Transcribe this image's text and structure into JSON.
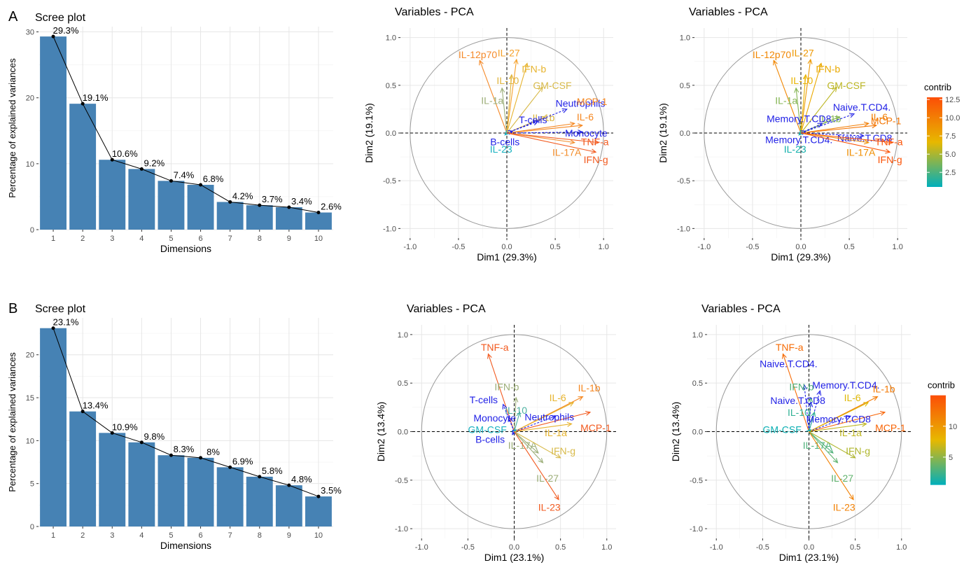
{
  "panels": {
    "A": {
      "label": "A"
    },
    "B": {
      "label": "B"
    }
  },
  "scree_style": {
    "bar_color": "#4682b4",
    "line_color": "#000000"
  },
  "contrib_scale_colors": [
    "#fc4e07",
    "#e7b800",
    "#00afbb"
  ],
  "chart_data": [
    {
      "type": "bar",
      "panel": "A",
      "title": "Scree plot",
      "xlabel": "Dimensions",
      "ylabel": "Percentage of explained variances",
      "categories": [
        "1",
        "2",
        "3",
        "4",
        "5",
        "6",
        "7",
        "8",
        "9",
        "10"
      ],
      "values": [
        29.3,
        19.1,
        10.6,
        9.2,
        7.4,
        6.8,
        4.2,
        3.7,
        3.4,
        2.6
      ],
      "data_labels": [
        "29.3%",
        "19.1%",
        "10.6%",
        "9.2%",
        "7.4%",
        "6.8%",
        "4.2%",
        "3.7%",
        "3.4%",
        "2.6%"
      ],
      "ylim": [
        0,
        30.8
      ],
      "yticks": [
        0,
        10,
        20,
        30
      ],
      "yticklabels": [
        "0",
        "10",
        "20",
        "30"
      ]
    },
    {
      "type": "scatter",
      "panel": "A",
      "title": "Variables - PCA",
      "xlabel": "Dim1 (29.3%)",
      "ylabel": "Dim2 (19.1%)",
      "xlim": [
        -1.1,
        1.1
      ],
      "ylim": [
        -1.1,
        1.1
      ],
      "ticks": [
        -1,
        -0.5,
        0,
        0.5,
        1
      ],
      "xticklabels": [
        "-1.0",
        "-0.5",
        "0.0",
        "0.5",
        "1.0"
      ],
      "yticklabels": [
        "-1.0",
        "-0.5",
        "0.0",
        "0.5",
        "1.0"
      ],
      "color_mode": "group",
      "arrows": [
        {
          "label": "IL-12p70",
          "x": -0.28,
          "y": 0.76,
          "lx": -0.3,
          "ly": 0.82,
          "color": "#f58a2a",
          "dashed": false
        },
        {
          "label": "IL-27",
          "x": 0.1,
          "y": 0.77,
          "lx": 0.02,
          "ly": 0.84,
          "color": "#f5a02a",
          "dashed": false
        },
        {
          "label": "IFN-b",
          "x": 0.21,
          "y": 0.73,
          "lx": 0.28,
          "ly": 0.67,
          "color": "#e7b42f",
          "dashed": false
        },
        {
          "label": "IL-10",
          "x": 0.05,
          "y": 0.61,
          "lx": 0.01,
          "ly": 0.55,
          "color": "#e0b43c",
          "dashed": false
        },
        {
          "label": "GM-CSF",
          "x": 0.37,
          "y": 0.48,
          "lx": 0.47,
          "ly": 0.5,
          "color": "#d8ba4a",
          "dashed": false
        },
        {
          "label": "IL-1a",
          "x": -0.05,
          "y": 0.47,
          "lx": -0.15,
          "ly": 0.34,
          "color": "#9cae78",
          "dashed": false
        },
        {
          "label": "IL-1b",
          "x": 0.4,
          "y": 0.17,
          "lx": 0.38,
          "ly": 0.16,
          "color": "#d9b53e",
          "dashed": false
        },
        {
          "label": "Neutrophils",
          "x": 0.62,
          "y": 0.25,
          "lx": 0.76,
          "ly": 0.31,
          "color": "#1f1fe6",
          "dashed": true
        },
        {
          "label": "T-cells",
          "x": 0.32,
          "y": 0.12,
          "lx": 0.27,
          "ly": 0.14,
          "color": "#1f1fe6",
          "dashed": true
        },
        {
          "label": "MCP-1",
          "x": 0.78,
          "y": 0.08,
          "lx": 0.88,
          "ly": 0.33,
          "color": "#f5861f",
          "dashed": false
        },
        {
          "label": "IL-6",
          "x": 0.7,
          "y": 0.1,
          "lx": 0.81,
          "ly": 0.17,
          "color": "#f5861f",
          "dashed": false
        },
        {
          "label": "Monocyte",
          "x": 0.78,
          "y": 0.01,
          "lx": 0.82,
          "ly": 0.0,
          "color": "#1f1fe6",
          "dashed": true
        },
        {
          "label": "IL-23",
          "x": -0.02,
          "y": -0.02,
          "lx": -0.06,
          "ly": -0.17,
          "color": "#19b2c1",
          "dashed": false
        },
        {
          "label": "B-cells",
          "x": 0.06,
          "y": 0.02,
          "lx": -0.02,
          "ly": -0.09,
          "color": "#1f1fe6",
          "dashed": true
        },
        {
          "label": "TNF-a",
          "x": 0.95,
          "y": -0.1,
          "lx": 0.91,
          "ly": -0.09,
          "color": "#f25a1f",
          "dashed": false
        },
        {
          "label": "IL-17A",
          "x": 0.7,
          "y": -0.1,
          "lx": 0.62,
          "ly": -0.2,
          "color": "#f28c2a",
          "dashed": false
        },
        {
          "label": "IFN-g",
          "x": 0.92,
          "y": -0.2,
          "lx": 0.92,
          "ly": -0.28,
          "color": "#f25a1f",
          "dashed": false
        }
      ]
    },
    {
      "type": "scatter",
      "panel": "A",
      "title": "Variables - PCA",
      "xlabel": "Dim1 (29.3%)",
      "ylabel": "Dim2 (19.1%)",
      "xlim": [
        -1.1,
        1.1
      ],
      "ylim": [
        -1.1,
        1.1
      ],
      "ticks": [
        -1,
        -0.5,
        0,
        0.5,
        1
      ],
      "xticklabels": [
        "-1.0",
        "-0.5",
        "0.0",
        "0.5",
        "1.0"
      ],
      "yticklabels": [
        "-1.0",
        "-0.5",
        "0.0",
        "0.5",
        "1.0"
      ],
      "color_mode": "contrib",
      "legend": {
        "title": "contrib",
        "min": 0.5,
        "max": 12.8,
        "ticks": [
          2.5,
          5.0,
          7.5,
          10.0,
          12.5
        ],
        "ticklabels": [
          "2.5",
          "5.0",
          "7.5",
          "10.0",
          "12.5"
        ],
        "position": "right"
      },
      "arrows": [
        {
          "label": "IL-12p70",
          "x": -0.28,
          "y": 0.76,
          "lx": -0.3,
          "ly": 0.82,
          "contrib": 9.5,
          "dashed": false
        },
        {
          "label": "IL-27",
          "x": 0.1,
          "y": 0.77,
          "lx": 0.02,
          "ly": 0.84,
          "contrib": 8.5,
          "dashed": false
        },
        {
          "label": "IFN-b",
          "x": 0.21,
          "y": 0.73,
          "lx": 0.28,
          "ly": 0.67,
          "contrib": 7.5,
          "dashed": false
        },
        {
          "label": "IL-10",
          "x": 0.05,
          "y": 0.61,
          "lx": 0.01,
          "ly": 0.55,
          "contrib": 7.0,
          "dashed": false
        },
        {
          "label": "GM-CSF",
          "x": 0.37,
          "y": 0.48,
          "lx": 0.47,
          "ly": 0.5,
          "contrib": 5.5,
          "dashed": false
        },
        {
          "label": "IL-1a",
          "x": -0.05,
          "y": 0.47,
          "lx": -0.15,
          "ly": 0.34,
          "contrib": 4.0,
          "dashed": false
        },
        {
          "label": "IL-1b",
          "x": 0.4,
          "y": 0.17,
          "lx": 0.3,
          "ly": 0.15,
          "contrib": 4.0,
          "dashed": false
        },
        {
          "label": "Naive.T.CD4.",
          "x": 0.55,
          "y": 0.2,
          "lx": 0.63,
          "ly": 0.27,
          "color": "#1f1fe6",
          "dashed": true
        },
        {
          "label": "Memory.T.CD8",
          "x": 0.22,
          "y": 0.1,
          "lx": -0.02,
          "ly": 0.15,
          "color": "#1f1fe6",
          "dashed": true
        },
        {
          "label": "MCP-1",
          "x": 0.78,
          "y": 0.08,
          "lx": 0.88,
          "ly": 0.13,
          "contrib": 10.5,
          "dashed": false
        },
        {
          "label": "IL-6",
          "x": 0.7,
          "y": 0.1,
          "lx": 0.81,
          "ly": 0.17,
          "contrib": 10.0,
          "dashed": false
        },
        {
          "label": "Memory.T.CD4.",
          "x": 0.05,
          "y": 0.02,
          "lx": -0.02,
          "ly": -0.07,
          "color": "#1f1fe6",
          "dashed": true
        },
        {
          "label": "Naive.T.CD8",
          "x": 0.65,
          "y": -0.03,
          "lx": 0.66,
          "ly": -0.05,
          "color": "#1f1fe6",
          "dashed": true
        },
        {
          "label": "IL-23",
          "x": -0.02,
          "y": -0.02,
          "lx": -0.06,
          "ly": -0.17,
          "contrib": 1.0,
          "dashed": false
        },
        {
          "label": "TNF-a",
          "x": 0.95,
          "y": -0.1,
          "lx": 0.91,
          "ly": -0.09,
          "contrib": 12.5,
          "dashed": false
        },
        {
          "label": "IL-17A",
          "x": 0.7,
          "y": -0.1,
          "lx": 0.62,
          "ly": -0.2,
          "contrib": 9.0,
          "dashed": false
        },
        {
          "label": "IFN-g",
          "x": 0.92,
          "y": -0.2,
          "lx": 0.92,
          "ly": -0.28,
          "contrib": 12.5,
          "dashed": false
        }
      ]
    },
    {
      "type": "bar",
      "panel": "B",
      "title": "Scree plot",
      "xlabel": "Dimensions",
      "ylabel": "Percentage of explained variances",
      "categories": [
        "1",
        "2",
        "3",
        "4",
        "5",
        "6",
        "7",
        "8",
        "9",
        "10"
      ],
      "values": [
        23.1,
        13.4,
        10.9,
        9.8,
        8.3,
        8.0,
        6.9,
        5.8,
        4.8,
        3.5
      ],
      "data_labels": [
        "23.1%",
        "13.4%",
        "10.9%",
        "9.8%",
        "8.3%",
        "8%",
        "6.9%",
        "5.8%",
        "4.8%",
        "3.5%"
      ],
      "ylim": [
        0,
        24.3
      ],
      "yticks": [
        0,
        5,
        10,
        15,
        20
      ],
      "yticklabels": [
        "0",
        "5",
        "10",
        "15",
        "20"
      ]
    },
    {
      "type": "scatter",
      "panel": "B",
      "title": "Variables - PCA",
      "xlabel": "Dim1 (23.1%)",
      "ylabel": "Dim2 (13.4%)",
      "xlim": [
        -1.1,
        1.1
      ],
      "ylim": [
        -1.1,
        1.1
      ],
      "ticks": [
        -1,
        -0.5,
        0,
        0.5,
        1
      ],
      "xticklabels": [
        "-1.0",
        "-0.5",
        "0.0",
        "0.5",
        "1.0"
      ],
      "yticklabels": [
        "-1.0",
        "-0.5",
        "0.0",
        "0.5",
        "1.0"
      ],
      "color_mode": "group",
      "arrows": [
        {
          "label": "TNF-a",
          "x": -0.28,
          "y": 0.8,
          "lx": -0.21,
          "ly": 0.87,
          "color": "#f25a1f",
          "dashed": false
        },
        {
          "label": "IL-1b",
          "x": 0.74,
          "y": 0.36,
          "lx": 0.81,
          "ly": 0.45,
          "color": "#f5861f",
          "dashed": false
        },
        {
          "label": "IL-6",
          "x": 0.64,
          "y": 0.3,
          "lx": 0.47,
          "ly": 0.35,
          "color": "#e7b42f",
          "dashed": false
        },
        {
          "label": "MCP-1",
          "x": 0.82,
          "y": 0.2,
          "lx": 0.88,
          "ly": 0.04,
          "color": "#f25a1f",
          "dashed": false
        },
        {
          "label": "IFN-b",
          "x": 0.02,
          "y": 0.35,
          "lx": -0.08,
          "ly": 0.46,
          "color": "#9cae78",
          "dashed": false
        },
        {
          "label": "IL-10",
          "x": 0.06,
          "y": 0.2,
          "lx": 0.02,
          "ly": 0.22,
          "color": "#4ab0a0",
          "dashed": false
        },
        {
          "label": "T-cells",
          "x": -0.12,
          "y": 0.28,
          "lx": -0.33,
          "ly": 0.33,
          "color": "#1f1fe6",
          "dashed": true
        },
        {
          "label": "Monocyte",
          "x": -0.06,
          "y": 0.15,
          "lx": -0.21,
          "ly": 0.14,
          "color": "#1f1fe6",
          "dashed": true
        },
        {
          "label": "Neutrophils",
          "x": 0.45,
          "y": 0.16,
          "lx": 0.38,
          "ly": 0.15,
          "color": "#1f1fe6",
          "dashed": true
        },
        {
          "label": "GM-CSF",
          "x": 0.02,
          "y": 0.02,
          "lx": -0.29,
          "ly": 0.02,
          "color": "#19b2c1",
          "dashed": false
        },
        {
          "label": "B-cells",
          "x": -0.02,
          "y": -0.03,
          "lx": -0.26,
          "ly": -0.08,
          "color": "#1f1fe6",
          "dashed": true
        },
        {
          "label": "IL-1a",
          "x": 0.62,
          "y": 0.08,
          "lx": 0.45,
          "ly": -0.01,
          "color": "#e7b42f",
          "dashed": false
        },
        {
          "label": "IL-17A",
          "x": 0.26,
          "y": -0.22,
          "lx": 0.09,
          "ly": -0.14,
          "color": "#9cae78",
          "dashed": false
        },
        {
          "label": "IFN-g",
          "x": 0.5,
          "y": -0.27,
          "lx": 0.53,
          "ly": -0.2,
          "color": "#d8ba4a",
          "dashed": false
        },
        {
          "label": "IL-27",
          "x": 0.31,
          "y": -0.32,
          "lx": 0.36,
          "ly": -0.48,
          "color": "#9cae78",
          "dashed": false
        },
        {
          "label": "IL-23",
          "x": 0.48,
          "y": -0.7,
          "lx": 0.38,
          "ly": -0.78,
          "color": "#f25a1f",
          "dashed": false
        }
      ]
    },
    {
      "type": "scatter",
      "panel": "B",
      "title": "Variables - PCA",
      "xlabel": "Dim1 (23.1%)",
      "ylabel": "Dim2 (13.4%)",
      "xlim": [
        -1.1,
        1.1
      ],
      "ylim": [
        -1.1,
        1.1
      ],
      "ticks": [
        -1,
        -0.5,
        0,
        0.5,
        1
      ],
      "xticklabels": [
        "-1.0",
        "-0.5",
        "0.0",
        "0.5",
        "1.0"
      ],
      "yticklabels": [
        "-1.0",
        "-0.5",
        "0.0",
        "0.5",
        "1.0"
      ],
      "color_mode": "contrib",
      "legend": {
        "title": "contrib",
        "min": 0.5,
        "max": 15.0,
        "ticks": [
          5,
          10
        ],
        "ticklabels": [
          "5",
          "10"
        ],
        "position": "right"
      },
      "arrows": [
        {
          "label": "TNF-a",
          "x": -0.28,
          "y": 0.8,
          "lx": -0.21,
          "ly": 0.87,
          "contrib": 13.0,
          "dashed": false
        },
        {
          "label": "Naive.T.CD4.",
          "x": -0.05,
          "y": 0.48,
          "lx": -0.22,
          "ly": 0.7,
          "color": "#1f1fe6",
          "dashed": true
        },
        {
          "label": "Memory.T.CD4.",
          "x": 0.12,
          "y": 0.42,
          "lx": 0.4,
          "ly": 0.48,
          "color": "#1f1fe6",
          "dashed": true
        },
        {
          "label": "IL-1b",
          "x": 0.74,
          "y": 0.36,
          "lx": 0.81,
          "ly": 0.44,
          "contrib": 12.0,
          "dashed": false
        },
        {
          "label": "IL-6",
          "x": 0.64,
          "y": 0.3,
          "lx": 0.47,
          "ly": 0.35,
          "contrib": 7.5,
          "dashed": false
        },
        {
          "label": "MCP-1",
          "x": 0.82,
          "y": 0.2,
          "lx": 0.88,
          "ly": 0.04,
          "contrib": 13.5,
          "dashed": false
        },
        {
          "label": "IFN-b",
          "x": 0.02,
          "y": 0.35,
          "lx": -0.08,
          "ly": 0.46,
          "contrib": 3.0,
          "dashed": false
        },
        {
          "label": "Naive.T.CD8",
          "x": 0.02,
          "y": 0.3,
          "lx": -0.12,
          "ly": 0.32,
          "color": "#1f1fe6",
          "dashed": true
        },
        {
          "label": "IL-10",
          "x": 0.06,
          "y": 0.2,
          "lx": -0.11,
          "ly": 0.2,
          "contrib": 2.0,
          "dashed": false
        },
        {
          "label": "Memory.T.CD8",
          "x": 0.45,
          "y": 0.16,
          "lx": 0.32,
          "ly": 0.13,
          "color": "#1f1fe6",
          "dashed": true
        },
        {
          "label": "GM-CSF",
          "x": 0.02,
          "y": 0.02,
          "lx": -0.29,
          "ly": 0.02,
          "contrib": 0.8,
          "dashed": false
        },
        {
          "label": "IL-1a",
          "x": 0.62,
          "y": 0.08,
          "lx": 0.45,
          "ly": -0.01,
          "contrib": 6.5,
          "dashed": false
        },
        {
          "label": "IL-17A",
          "x": 0.26,
          "y": -0.22,
          "lx": 0.09,
          "ly": -0.14,
          "contrib": 3.0,
          "dashed": false
        },
        {
          "label": "IFN-g",
          "x": 0.5,
          "y": -0.27,
          "lx": 0.53,
          "ly": -0.2,
          "contrib": 6.0,
          "dashed": false
        },
        {
          "label": "IL-27",
          "x": 0.31,
          "y": -0.32,
          "lx": 0.36,
          "ly": -0.48,
          "contrib": 3.5,
          "dashed": false
        },
        {
          "label": "IL-23",
          "x": 0.48,
          "y": -0.7,
          "lx": 0.38,
          "ly": -0.78,
          "contrib": 11.5,
          "dashed": false
        }
      ]
    }
  ]
}
